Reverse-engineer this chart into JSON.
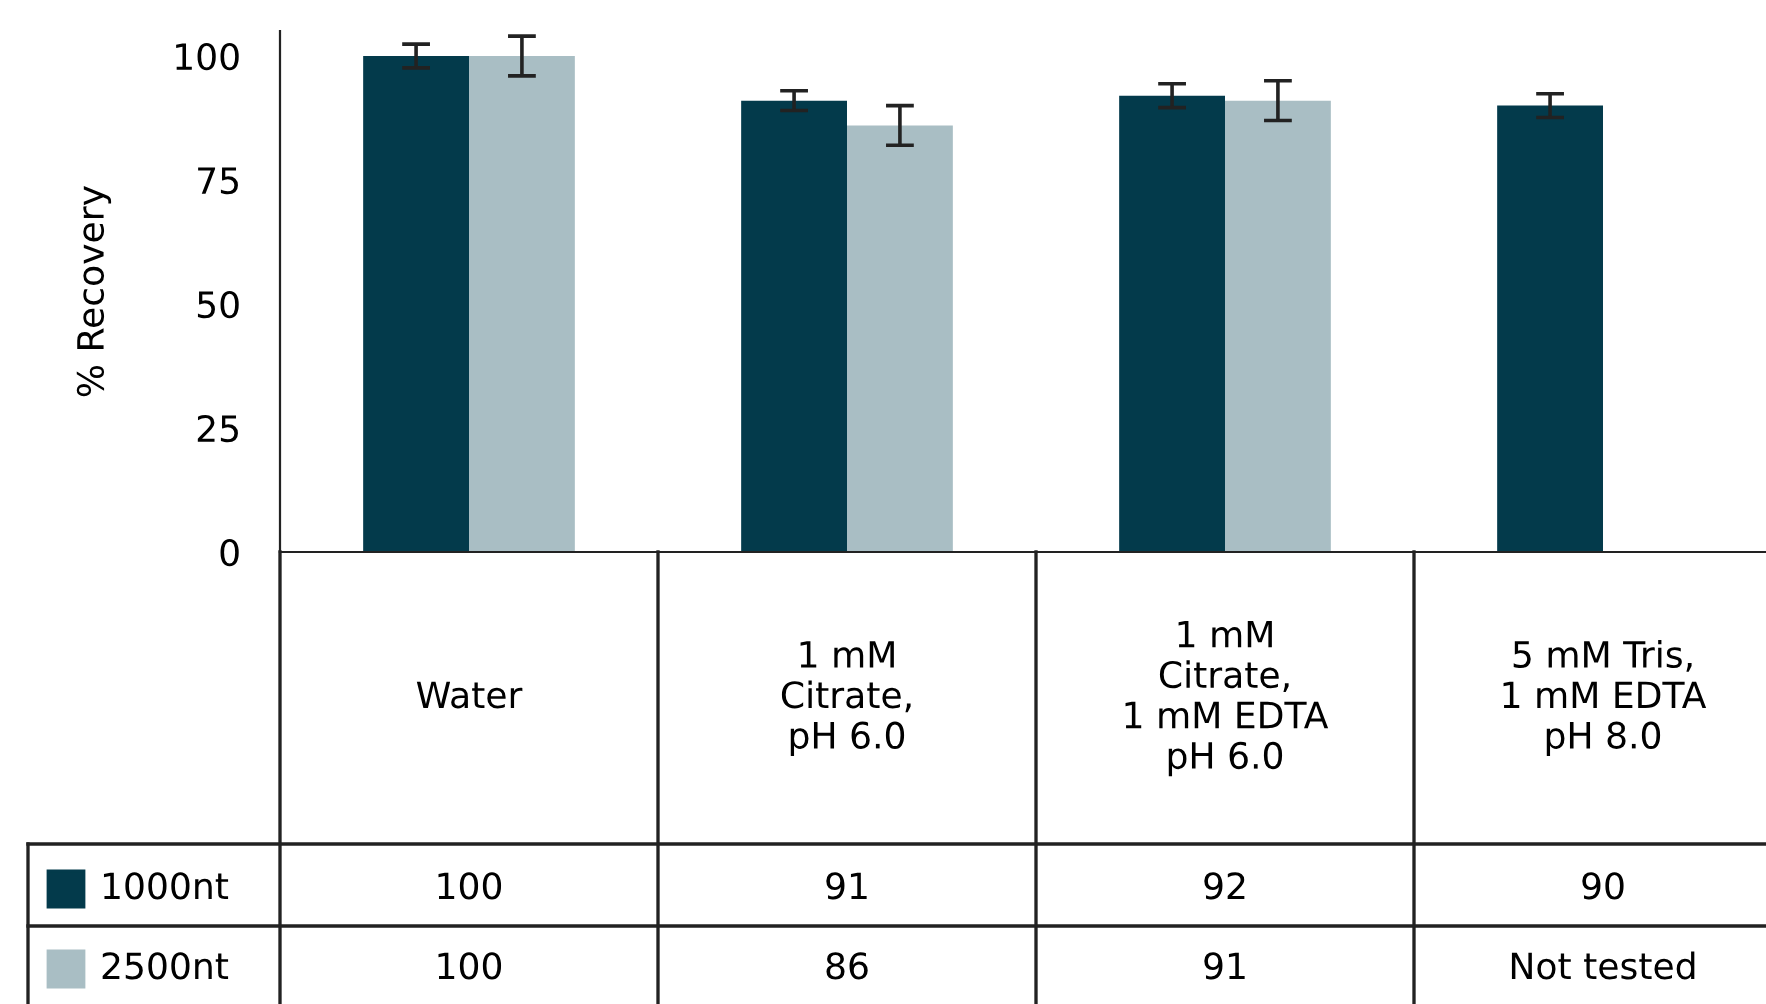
{
  "chart_data": {
    "type": "bar",
    "ylabel": "% Recovery",
    "categories": [
      "Water",
      "1 mM\nCitrate,\npH 6.0",
      "1 mM\nCitrate,\n1 mM EDTA\npH 6.0",
      "5 mM Tris,\n1 mM EDTA\npH 8.0"
    ],
    "series": [
      {
        "name": "1000nt",
        "color": "#033a4b",
        "values": [
          100,
          91,
          92,
          90
        ],
        "errors": [
          2.4,
          2,
          2.4,
          2.4
        ],
        "value_labels": [
          "100",
          "91",
          "92",
          "90"
        ]
      },
      {
        "name": "2500nt",
        "color": "#a9bec4",
        "values": [
          100,
          86,
          91,
          null
        ],
        "errors": [
          4,
          4,
          4,
          null
        ],
        "value_labels": [
          "100",
          "86",
          "91",
          "Not tested"
        ]
      }
    ],
    "ylim": [
      0,
      105
    ],
    "yticks": [
      0,
      25,
      50,
      75,
      100
    ],
    "grid": false,
    "legend": "bottom"
  }
}
